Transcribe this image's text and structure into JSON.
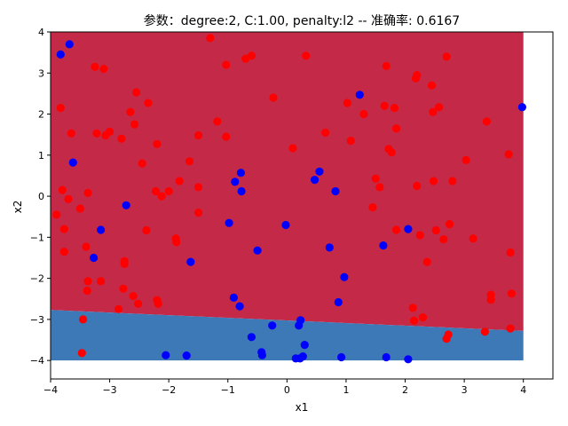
{
  "chart_data": {
    "type": "scatter",
    "title": "参数：degree:2, C:1.00, penalty:l2 -- 准确率: 0.6167",
    "xlabel": "x1",
    "ylabel": "x2",
    "xlim": [
      -4,
      4.5
    ],
    "ylim": [
      -4.45,
      4
    ],
    "xticks": [
      -4,
      -3,
      -2,
      -1,
      0,
      1,
      2,
      3,
      4
    ],
    "yticks": [
      -4,
      -3,
      -2,
      -1,
      0,
      1,
      2,
      3,
      4
    ],
    "grid": false,
    "colors": {
      "red_region": "#c42a48",
      "blue_region": "#3d79b7",
      "red_point": "#ff0000",
      "blue_point": "#0000ff"
    },
    "decision_region": {
      "x_range": [
        -4,
        4
      ],
      "y_range": [
        -4,
        4
      ],
      "boundary": [
        [
          -4,
          -2.77
        ],
        [
          4,
          -3.28
        ]
      ],
      "above": "red",
      "below": "blue"
    },
    "series": [
      {
        "color": "#ff0000",
        "points": [
          [
            -3.83,
            2.15
          ],
          [
            -3.65,
            1.53
          ],
          [
            -3.8,
            0.15
          ],
          [
            -3.7,
            -0.07
          ],
          [
            -3.9,
            -0.45
          ],
          [
            -3.77,
            -0.8
          ],
          [
            -3.77,
            -1.35
          ],
          [
            -3.5,
            -0.3
          ],
          [
            -3.4,
            -1.23
          ],
          [
            -3.37,
            0.08
          ],
          [
            -3.37,
            -2.07
          ],
          [
            -3.38,
            -2.3
          ],
          [
            -3.25,
            3.15
          ],
          [
            -3.1,
            3.1
          ],
          [
            -3.22,
            1.53
          ],
          [
            -3.07,
            1.48
          ],
          [
            -3.0,
            1.57
          ],
          [
            -3.15,
            -2.07
          ],
          [
            -3.45,
            -3.0
          ],
          [
            -3.47,
            -3.82
          ],
          [
            -2.85,
            -2.75
          ],
          [
            -2.8,
            1.4
          ],
          [
            -2.75,
            -1.58
          ],
          [
            -2.75,
            -1.65
          ],
          [
            -2.77,
            -2.25
          ],
          [
            -2.65,
            2.05
          ],
          [
            -2.58,
            1.75
          ],
          [
            -2.55,
            2.53
          ],
          [
            -2.52,
            -2.62
          ],
          [
            -2.6,
            -2.43
          ],
          [
            -2.45,
            0.8
          ],
          [
            -2.38,
            -0.83
          ],
          [
            -2.35,
            2.27
          ],
          [
            -2.2,
            -2.53
          ],
          [
            -2.18,
            -2.62
          ],
          [
            -2.2,
            1.27
          ],
          [
            -2.22,
            0.12
          ],
          [
            -2.12,
            0.0
          ],
          [
            -2.0,
            0.12
          ],
          [
            -1.88,
            -1.03
          ],
          [
            -1.87,
            -1.12
          ],
          [
            -1.82,
            0.37
          ],
          [
            -1.65,
            0.85
          ],
          [
            -1.5,
            1.48
          ],
          [
            -1.5,
            0.22
          ],
          [
            -1.5,
            -0.4
          ],
          [
            -1.3,
            3.85
          ],
          [
            -1.18,
            1.82
          ],
          [
            -1.03,
            3.2
          ],
          [
            -1.03,
            1.45
          ],
          [
            -0.7,
            3.35
          ],
          [
            -0.6,
            3.42
          ],
          [
            -0.23,
            2.4
          ],
          [
            0.1,
            1.17
          ],
          [
            0.32,
            3.42
          ],
          [
            0.65,
            1.55
          ],
          [
            1.02,
            2.27
          ],
          [
            1.08,
            1.35
          ],
          [
            1.3,
            2.0
          ],
          [
            1.45,
            -0.27
          ],
          [
            1.5,
            0.43
          ],
          [
            1.57,
            0.22
          ],
          [
            1.65,
            2.2
          ],
          [
            1.68,
            3.17
          ],
          [
            1.72,
            1.15
          ],
          [
            1.77,
            1.07
          ],
          [
            1.82,
            2.15
          ],
          [
            1.85,
            1.65
          ],
          [
            1.85,
            -0.82
          ],
          [
            2.13,
            -2.72
          ],
          [
            2.15,
            -3.03
          ],
          [
            2.18,
            2.87
          ],
          [
            2.2,
            2.95
          ],
          [
            2.2,
            0.25
          ],
          [
            2.25,
            -0.95
          ],
          [
            2.3,
            -2.95
          ],
          [
            2.37,
            -1.6
          ],
          [
            2.45,
            2.7
          ],
          [
            2.47,
            2.05
          ],
          [
            2.48,
            0.37
          ],
          [
            2.52,
            -0.83
          ],
          [
            2.57,
            2.17
          ],
          [
            2.65,
            -1.05
          ],
          [
            2.7,
            3.4
          ],
          [
            2.7,
            -3.47
          ],
          [
            2.73,
            -3.37
          ],
          [
            2.75,
            -0.68
          ],
          [
            2.8,
            0.37
          ],
          [
            3.03,
            0.88
          ],
          [
            3.15,
            -1.03
          ],
          [
            3.35,
            -3.3
          ],
          [
            3.38,
            1.82
          ],
          [
            3.45,
            -2.4
          ],
          [
            3.45,
            -2.52
          ],
          [
            3.75,
            1.02
          ],
          [
            3.78,
            -1.37
          ],
          [
            3.8,
            -2.37
          ],
          [
            3.78,
            -3.22
          ]
        ]
      },
      {
        "color": "#0000ff",
        "points": [
          [
            -3.68,
            3.7
          ],
          [
            -3.83,
            3.45
          ],
          [
            -3.62,
            0.82
          ],
          [
            -3.15,
            -0.82
          ],
          [
            -3.27,
            -1.5
          ],
          [
            -2.72,
            -0.22
          ],
          [
            -1.63,
            -1.6
          ],
          [
            -2.05,
            -3.87
          ],
          [
            -1.7,
            -3.88
          ],
          [
            -0.98,
            -0.65
          ],
          [
            -0.88,
            0.35
          ],
          [
            -0.78,
            0.57
          ],
          [
            -0.77,
            0.12
          ],
          [
            -0.9,
            -2.47
          ],
          [
            -0.8,
            -2.68
          ],
          [
            -0.6,
            -3.43
          ],
          [
            -0.5,
            -1.32
          ],
          [
            -0.43,
            -3.8
          ],
          [
            -0.42,
            -3.87
          ],
          [
            -0.25,
            -3.15
          ],
          [
            -0.02,
            -0.7
          ],
          [
            0.15,
            -3.95
          ],
          [
            0.22,
            -3.95
          ],
          [
            0.2,
            -3.15
          ],
          [
            0.23,
            -3.02
          ],
          [
            0.27,
            -3.9
          ],
          [
            0.3,
            -3.62
          ],
          [
            0.47,
            0.4
          ],
          [
            0.55,
            0.6
          ],
          [
            0.72,
            -1.25
          ],
          [
            0.82,
            0.12
          ],
          [
            0.87,
            -2.58
          ],
          [
            0.97,
            -1.97
          ],
          [
            0.92,
            -3.92
          ],
          [
            1.23,
            2.47
          ],
          [
            1.63,
            -1.2
          ],
          [
            1.68,
            -3.92
          ],
          [
            2.05,
            -0.8
          ],
          [
            2.05,
            -3.97
          ],
          [
            3.98,
            2.17
          ]
        ]
      }
    ]
  }
}
